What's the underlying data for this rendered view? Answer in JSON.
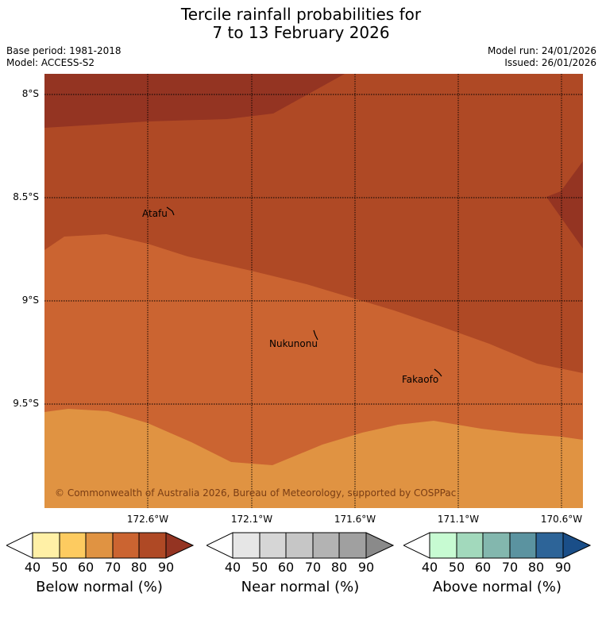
{
  "title": {
    "line1": "Tercile rainfall probabilities for",
    "line2": "7 to 13 February 2026"
  },
  "meta": {
    "base_period": "Base period: 1981-2018",
    "model": "Model: ACCESS-S2",
    "model_run": "Model run: 24/01/2026",
    "issued": "Issued: 26/01/2026"
  },
  "map": {
    "lat_labels": [
      "8°S",
      "8.5°S",
      "9°S",
      "9.5°S"
    ],
    "lon_labels": [
      "172.6°W",
      "172.1°W",
      "171.6°W",
      "171.1°W",
      "170.6°W"
    ],
    "places": [
      "Atafu",
      "Nukunonu",
      "Fakaofo"
    ],
    "copyright": "© Commonwealth of Australia 2026, Bureau of Meteorology, supported by COSPPac",
    "colors": {
      "below_50_60": "#e09342",
      "below_60_70": "#cb6431",
      "below_70_80": "#af4925",
      "below_80_90": "#943422"
    }
  },
  "legend": {
    "ticks": [
      "40",
      "50",
      "60",
      "70",
      "80",
      "90"
    ],
    "below": {
      "label": "Below normal (%)",
      "colors": [
        "#fff0a6",
        "#fdcb60",
        "#e09342",
        "#cb6431",
        "#af4925",
        "#943422"
      ]
    },
    "near": {
      "label": "Near normal (%)",
      "colors": [
        "#e6e6e6",
        "#d6d6d6",
        "#c6c6c6",
        "#b3b3b3",
        "#a0a0a0",
        "#8a8a8a"
      ]
    },
    "above": {
      "label": "Above normal (%)",
      "colors": [
        "#c7fbd2",
        "#a2d9bc",
        "#83b7ae",
        "#5b93a0",
        "#2d6498",
        "#1a4e88"
      ]
    }
  }
}
